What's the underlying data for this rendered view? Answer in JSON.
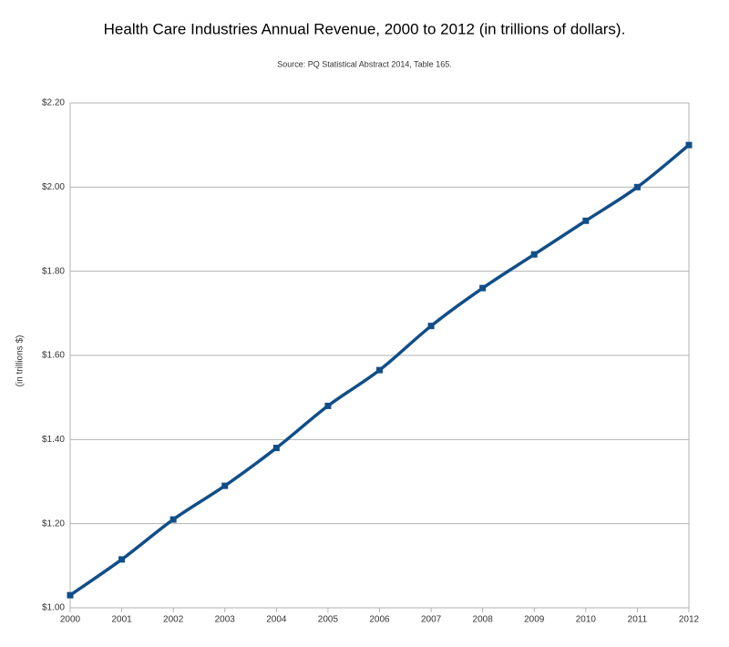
{
  "chart_data": {
    "type": "line",
    "title": "Health Care Industries Annual Revenue, 2000 to 2012 (in trillions of dollars).",
    "subtitle": "Source: PQ Statistical Abstract 2014, Table 165.",
    "y_label": "(in trillions $)",
    "categories": [
      "2000",
      "2001",
      "2002",
      "2003",
      "2004",
      "2005",
      "2006",
      "2007",
      "2008",
      "2009",
      "2010",
      "2011",
      "2012"
    ],
    "values": [
      1.03,
      1.115,
      1.21,
      1.29,
      1.38,
      1.48,
      1.565,
      1.67,
      1.76,
      1.84,
      1.92,
      2.0,
      2.1
    ],
    "color": "#114e89",
    "ylim": [
      1.0,
      2.2
    ],
    "yticks": [
      {
        "value": 1.0,
        "label": "$1.00"
      },
      {
        "value": 1.2,
        "label": "$1.20"
      },
      {
        "value": 1.4,
        "label": "$1.40"
      },
      {
        "value": 1.6,
        "label": "$1.60"
      },
      {
        "value": 1.8,
        "label": "$1.80"
      },
      {
        "value": 2.0,
        "label": "$2.00"
      },
      {
        "value": 2.2,
        "label": "$2.20"
      }
    ],
    "grid": true,
    "smooth": true
  }
}
